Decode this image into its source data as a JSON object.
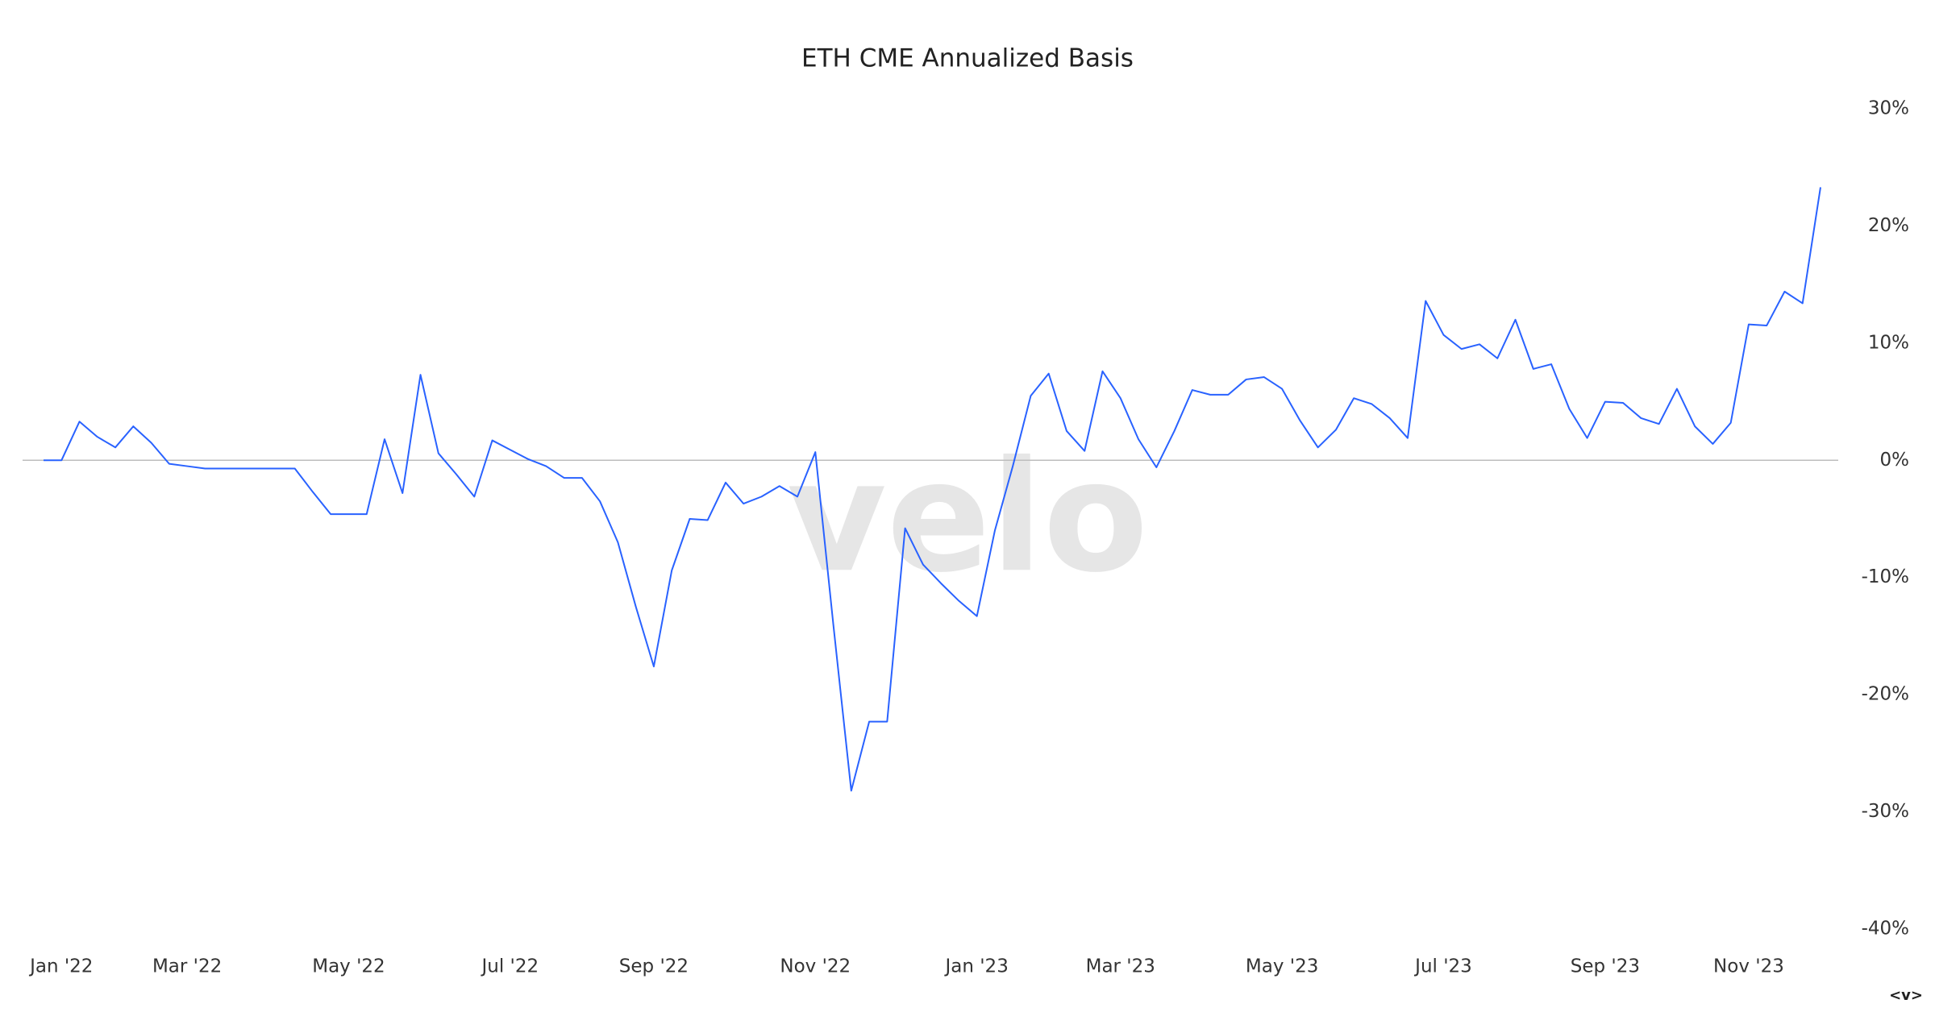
{
  "chart_data": {
    "type": "line",
    "title": "ETH CME Annualized Basis",
    "watermark": "velo",
    "corner_mark": "<v>",
    "categories": [
      null,
      "Jan '22",
      null,
      null,
      null,
      null,
      null,
      null,
      "Mar '22",
      null,
      null,
      null,
      null,
      null,
      null,
      null,
      null,
      "May '22",
      null,
      null,
      null,
      null,
      null,
      null,
      null,
      null,
      "Jul '22",
      null,
      null,
      null,
      null,
      null,
      null,
      null,
      "Sep '22",
      null,
      null,
      null,
      null,
      null,
      null,
      null,
      null,
      "Nov '22",
      null,
      null,
      null,
      null,
      null,
      null,
      null,
      null,
      "Jan '23",
      null,
      null,
      null,
      null,
      null,
      null,
      null,
      "Mar '23",
      null,
      null,
      null,
      null,
      null,
      null,
      null,
      null,
      "May '23",
      null,
      null,
      null,
      null,
      null,
      null,
      null,
      null,
      "Jul '23",
      null,
      null,
      null,
      null,
      null,
      null,
      null,
      null,
      "Sep '23",
      null,
      null,
      null,
      null,
      null,
      null,
      null,
      "Nov '23",
      null,
      null,
      null,
      null
    ],
    "series": [
      {
        "name": "ETH CME Annualized Basis",
        "color": "#2962ff",
        "values": [
          0,
          0,
          3.3,
          2,
          1.1,
          2.9,
          1.5,
          -0.3,
          -0.5,
          -0.7,
          -0.7,
          -0.7,
          -0.7,
          -0.7,
          -0.7,
          -2.7,
          -4.6,
          -4.6,
          -4.6,
          1.8,
          -2.8,
          7.3,
          0.6,
          -1.2,
          -3.1,
          1.7,
          0.9,
          0.1,
          -0.5,
          -1.5,
          -1.5,
          -3.5,
          -7,
          -12.5,
          -17.6,
          -9.4,
          -5,
          -5.1,
          -1.9,
          -3.7,
          -3.1,
          -2.2,
          -3.1,
          0.7,
          -14,
          -28.2,
          -22.3,
          -22.3,
          -5.8,
          -8.9,
          -10.5,
          -12,
          -13.3,
          -6,
          -0.5,
          5.5,
          7.4,
          2.5,
          0.8,
          7.6,
          5.3,
          1.8,
          -0.6,
          2.5,
          6,
          5.6,
          5.6,
          6.9,
          7.1,
          6.1,
          3.4,
          1.1,
          2.6,
          5.3,
          4.8,
          3.6,
          1.9,
          13.6,
          10.7,
          9.5,
          9.9,
          8.7,
          12,
          7.8,
          8.2,
          4.4,
          1.9,
          5,
          4.9,
          3.6,
          3.1,
          6.1,
          2.9,
          1.4,
          3.2,
          11.6,
          11.5,
          14.4,
          13.4,
          23.3
        ]
      }
    ],
    "ylim": [
      -40,
      30
    ],
    "yticks": [
      {
        "value": 30,
        "label": "30%"
      },
      {
        "value": 20,
        "label": "20%"
      },
      {
        "value": 10,
        "label": "10%"
      },
      {
        "value": 0,
        "label": "0%"
      },
      {
        "value": -10,
        "label": "-10%"
      },
      {
        "value": -20,
        "label": "-20%"
      },
      {
        "value": -30,
        "label": "-30%"
      },
      {
        "value": -40,
        "label": "-40%"
      }
    ],
    "reference_line": 0,
    "grid": false,
    "yaxis_side": "right"
  }
}
